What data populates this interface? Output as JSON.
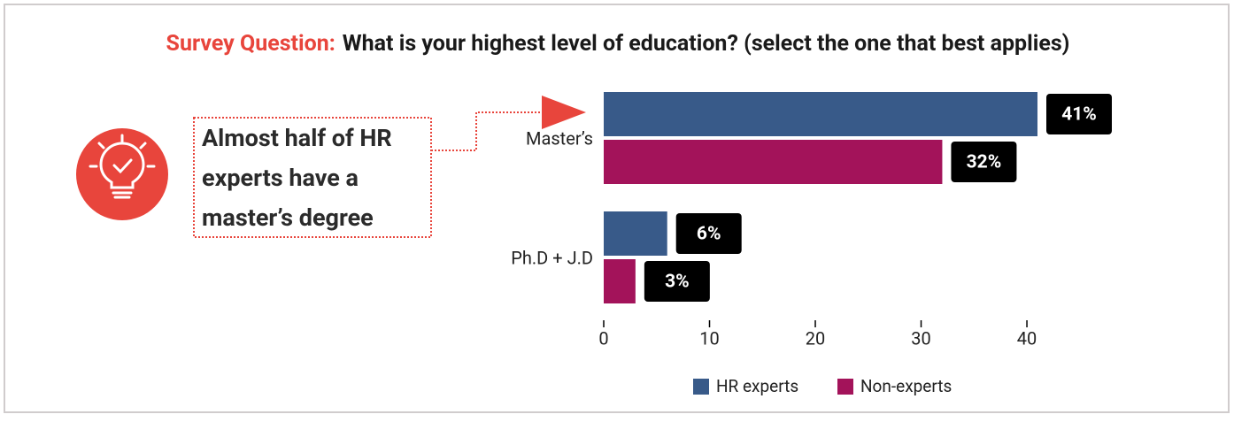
{
  "chart_data": {
    "type": "barh",
    "title": {
      "prefix": "Survey Question:",
      "text": "What is your highest level of education? (select the one that best applies)"
    },
    "callout": {
      "lines": [
        "Almost half of HR",
        "experts have a",
        "master’s degree"
      ]
    },
    "categories": [
      "Master’s",
      "Ph.D + J.D"
    ],
    "series": [
      {
        "name": "HR experts",
        "color": "#385a89",
        "values": [
          41,
          6
        ],
        "value_labels": [
          "41%",
          "6%"
        ]
      },
      {
        "name": "Non-experts",
        "color": "#a3135a",
        "values": [
          32,
          3
        ],
        "value_labels": [
          "32%",
          "3%"
        ]
      }
    ],
    "xlim": [
      0,
      41
    ],
    "xticks": [
      0,
      10,
      20,
      30,
      40
    ],
    "grid": false,
    "legend": "bottom"
  }
}
